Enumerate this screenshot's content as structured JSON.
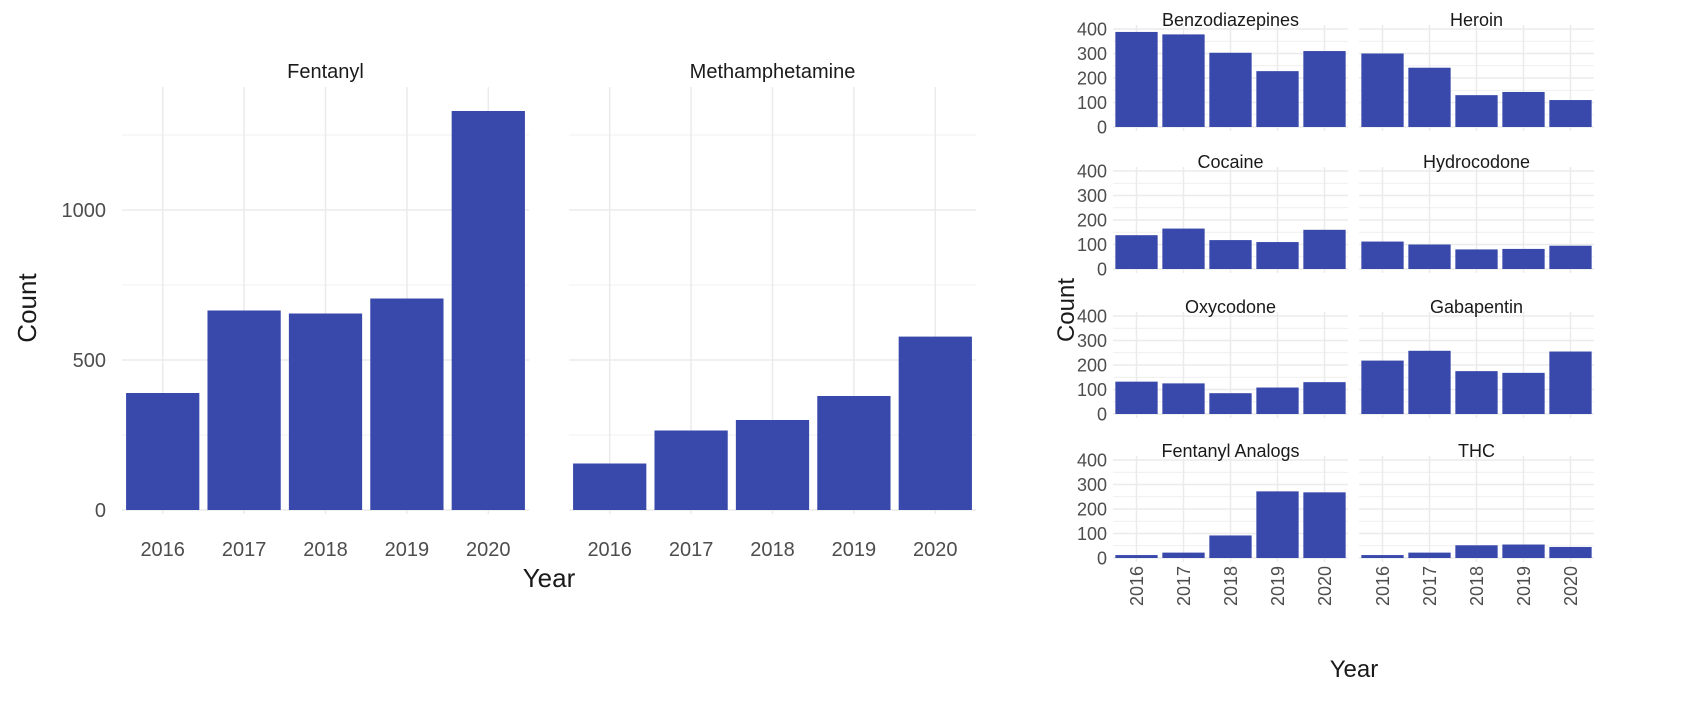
{
  "colors": {
    "bar": "#3949ab",
    "grid": "#ebebeb",
    "text": "#1a1a1a",
    "tick": "#4d4d4d"
  },
  "chart_data": [
    {
      "type": "bar",
      "facet_layout": "1x2",
      "xlabel": "Year",
      "ylabel": "Count",
      "ylim": [
        0,
        1350
      ],
      "yticks": [
        0,
        500,
        1000
      ],
      "categories": [
        "2016",
        "2017",
        "2018",
        "2019",
        "2020"
      ],
      "grid": true,
      "panels": [
        {
          "name": "Fentanyl",
          "values": [
            390,
            665,
            655,
            705,
            1330
          ]
        },
        {
          "name": "Methamphetamine",
          "values": [
            155,
            265,
            300,
            380,
            578
          ]
        }
      ]
    },
    {
      "type": "bar",
      "facet_layout": "4x2",
      "xlabel": "Year",
      "ylabel": "Count",
      "ylim": [
        0,
        400
      ],
      "yticks": [
        0,
        100,
        200,
        300,
        400
      ],
      "categories": [
        "2016",
        "2017",
        "2018",
        "2019",
        "2020"
      ],
      "x_tick_rotation": "vertical",
      "grid": true,
      "panels": [
        {
          "name": "Benzodiazepines",
          "values": [
            388,
            378,
            303,
            228,
            310
          ]
        },
        {
          "name": "Heroin",
          "values": [
            300,
            242,
            130,
            143,
            110
          ]
        },
        {
          "name": "Cocaine",
          "values": [
            138,
            165,
            118,
            110,
            160
          ]
        },
        {
          "name": "Hydrocodone",
          "values": [
            112,
            100,
            80,
            82,
            95
          ]
        },
        {
          "name": "Oxycodone",
          "values": [
            132,
            125,
            85,
            108,
            130
          ]
        },
        {
          "name": "Gabapentin",
          "values": [
            218,
            258,
            175,
            168,
            255
          ]
        },
        {
          "name": "Fentanyl Analogs",
          "values": [
            12,
            22,
            92,
            272,
            268
          ]
        },
        {
          "name": "THC",
          "values": [
            12,
            22,
            52,
            55,
            45
          ]
        }
      ]
    }
  ]
}
